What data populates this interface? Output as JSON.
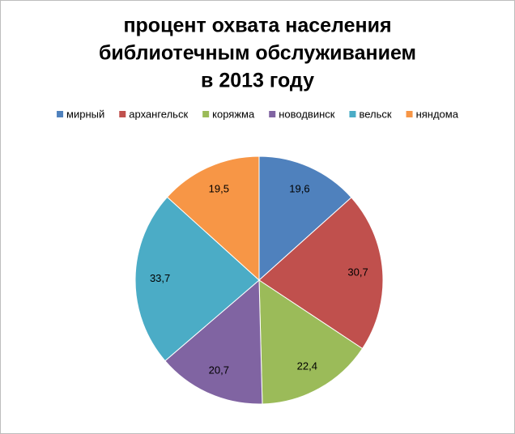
{
  "chart_data": {
    "type": "pie",
    "title": [
      "процент охвата населения",
      "библиотечным обслуживанием",
      "в 2013 году"
    ],
    "categories": [
      "мирный",
      "архангельск",
      "коряжма",
      "новодвинск",
      "вельск",
      "няндома"
    ],
    "values": [
      19.6,
      30.7,
      22.4,
      20.7,
      33.7,
      19.5
    ],
    "value_labels": [
      "19,6",
      "30,7",
      "22,4",
      "20,7",
      "33,7",
      "19,5"
    ],
    "colors": [
      "#4f81bd",
      "#c0504d",
      "#9bbb59",
      "#8064a2",
      "#4bacc6",
      "#f79646"
    ],
    "legend": "top"
  }
}
